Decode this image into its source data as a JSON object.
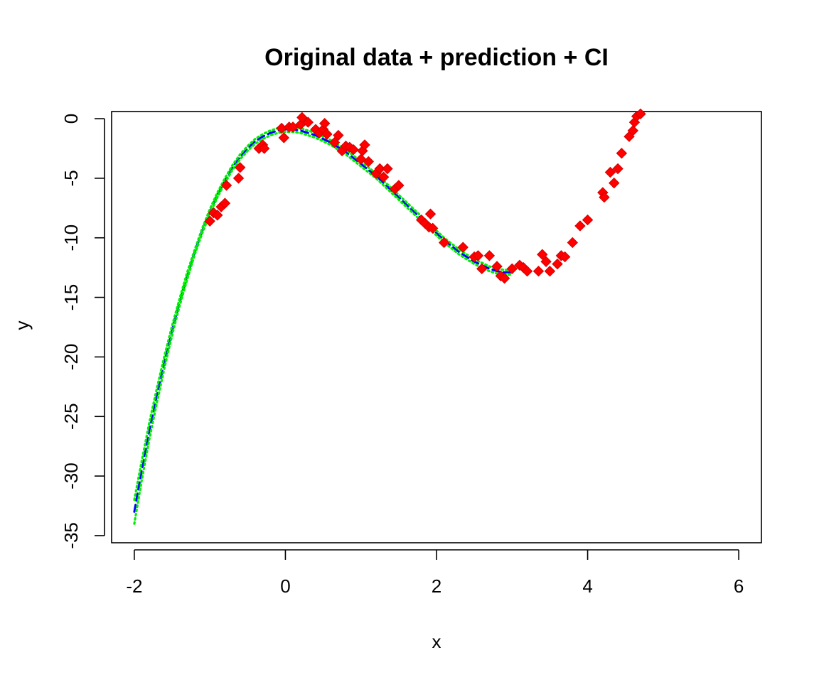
{
  "chart_data": {
    "type": "scatter",
    "title": "Original data + prediction + CI",
    "xlabel": "x",
    "ylabel": "y",
    "xlim": [
      -2.3,
      6.3
    ],
    "ylim": [
      -35.6,
      0.6
    ],
    "x_ticks": [
      -2,
      0,
      2,
      4,
      6
    ],
    "y_ticks": [
      0,
      -5,
      -10,
      -15,
      -20,
      -25,
      -30,
      -35
    ],
    "grid": false,
    "legend": "none",
    "colors": {
      "points": "#ff0000",
      "prediction": "#0000ff",
      "ci": "#00ee00",
      "axes": "#000000"
    },
    "series": [
      {
        "style": "points",
        "marker": "diamond",
        "x": [
          -1.0,
          -0.95,
          -0.9,
          -0.85,
          -0.8,
          -0.78,
          -0.62,
          -0.6,
          -0.35,
          -0.3,
          -0.28,
          -0.05,
          -0.02,
          0.05,
          0.1,
          0.2,
          0.22,
          0.3,
          0.4,
          0.45,
          0.5,
          0.52,
          0.55,
          0.65,
          0.7,
          0.75,
          0.8,
          0.85,
          0.9,
          1.0,
          1.02,
          1.05,
          1.1,
          1.2,
          1.25,
          1.3,
          1.35,
          1.45,
          1.5,
          1.8,
          1.85,
          1.9,
          1.92,
          1.95,
          2.1,
          2.35,
          2.5,
          2.55,
          2.6,
          2.7,
          2.8,
          2.85,
          2.9,
          3.0,
          3.1,
          3.15,
          3.2,
          3.35,
          3.4,
          3.45,
          3.5,
          3.6,
          3.65,
          3.7,
          3.8,
          3.9,
          4.0,
          4.2,
          4.22,
          4.3,
          4.35,
          4.4,
          4.45,
          4.55,
          4.6,
          4.62,
          4.65,
          4.7
        ],
        "y": [
          -8.6,
          -7.9,
          -8.1,
          -7.4,
          -7.1,
          -5.6,
          -5.0,
          -4.1,
          -2.5,
          -2.2,
          -2.5,
          -0.8,
          -1.6,
          -0.7,
          -0.7,
          -0.5,
          0.1,
          -0.3,
          -0.9,
          -1.2,
          -0.9,
          -0.4,
          -1.3,
          -2.0,
          -1.4,
          -2.7,
          -2.3,
          -2.4,
          -2.6,
          -3.4,
          -2.7,
          -2.2,
          -3.6,
          -4.6,
          -4.2,
          -4.9,
          -4.2,
          -5.9,
          -5.6,
          -8.5,
          -8.8,
          -9.1,
          -8.0,
          -9.2,
          -10.4,
          -10.8,
          -11.6,
          -11.5,
          -12.6,
          -11.5,
          -12.4,
          -13.2,
          -13.4,
          -12.6,
          -12.3,
          -12.5,
          -12.8,
          -12.8,
          -11.4,
          -12.0,
          -12.8,
          -12.2,
          -11.5,
          -11.6,
          -10.4,
          -9.0,
          -8.5,
          -6.2,
          -6.6,
          -4.5,
          -5.4,
          -4.2,
          -2.9,
          -1.5,
          -1.0,
          -0.3,
          0.2,
          0.4
        ]
      },
      {
        "style": "dashed-line",
        "x": [
          -2.0,
          -1.9,
          -1.8,
          -1.7,
          -1.6,
          -1.5,
          -1.4,
          -1.3,
          -1.2,
          -1.1,
          -1.0,
          -0.9,
          -0.8,
          -0.7,
          -0.6,
          -0.5,
          -0.4,
          -0.3,
          -0.2,
          -0.1,
          0.0,
          0.1,
          0.2,
          0.3,
          0.4,
          0.5,
          0.6,
          0.7,
          0.8,
          0.9,
          1.0,
          1.1,
          1.2,
          1.3,
          1.4,
          1.5,
          1.6,
          1.7,
          1.8,
          1.9,
          2.0,
          2.1,
          2.2,
          2.3,
          2.4,
          2.5,
          2.6,
          2.7,
          2.8,
          2.9,
          3.0
        ],
        "y": [
          -33.0,
          -29.5,
          -26.2,
          -23.2,
          -20.4,
          -17.8,
          -15.4,
          -13.2,
          -11.2,
          -9.4,
          -7.8,
          -6.4,
          -5.2,
          -4.1,
          -3.2,
          -2.5,
          -1.9,
          -1.5,
          -1.2,
          -1.0,
          -0.9,
          -0.9,
          -1.0,
          -1.2,
          -1.4,
          -1.7,
          -2.0,
          -2.4,
          -2.8,
          -3.3,
          -3.8,
          -4.3,
          -4.8,
          -5.4,
          -6.0,
          -6.6,
          -7.2,
          -7.8,
          -8.4,
          -9.0,
          -9.6,
          -10.2,
          -10.7,
          -11.2,
          -11.6,
          -12.0,
          -12.3,
          -12.6,
          -12.8,
          -12.9,
          -12.9
        ]
      },
      {
        "style": "dotted-line",
        "x": [
          -2.0,
          -1.9,
          -1.8,
          -1.7,
          -1.6,
          -1.5,
          -1.4,
          -1.3,
          -1.2,
          -1.1,
          -1.0,
          -0.9,
          -0.8,
          -0.7,
          -0.6,
          -0.5,
          -0.4,
          -0.3,
          -0.2,
          -0.1,
          0.0,
          0.1,
          0.2,
          0.3,
          0.4,
          0.5,
          0.6,
          0.7,
          0.8,
          0.9,
          1.0,
          1.1,
          1.2,
          1.3,
          1.4,
          1.5,
          1.6,
          1.7,
          1.8,
          1.9,
          2.0,
          2.1,
          2.2,
          2.3,
          2.4,
          2.5,
          2.6,
          2.7,
          2.8,
          2.9,
          3.0
        ],
        "y": [
          -34.0,
          -30.3,
          -26.9,
          -23.8,
          -20.9,
          -18.2,
          -15.7,
          -13.5,
          -11.4,
          -9.6,
          -8.0,
          -6.6,
          -5.4,
          -4.3,
          -3.4,
          -2.7,
          -2.1,
          -1.7,
          -1.4,
          -1.2,
          -1.1,
          -1.1,
          -1.2,
          -1.4,
          -1.6,
          -1.9,
          -2.2,
          -2.6,
          -3.0,
          -3.5,
          -4.0,
          -4.5,
          -5.0,
          -5.6,
          -6.2,
          -6.8,
          -7.4,
          -8.0,
          -8.6,
          -9.2,
          -9.8,
          -10.4,
          -10.9,
          -11.4,
          -11.8,
          -12.2,
          -12.5,
          -12.8,
          -13.0,
          -13.1,
          -13.1
        ]
      },
      {
        "style": "dotted-line",
        "x": [
          -2.0,
          -1.9,
          -1.8,
          -1.7,
          -1.6,
          -1.5,
          -1.4,
          -1.3,
          -1.2,
          -1.1,
          -1.0,
          -0.9,
          -0.8,
          -0.7,
          -0.6,
          -0.5,
          -0.4,
          -0.3,
          -0.2,
          -0.1,
          0.0,
          0.1,
          0.2,
          0.3,
          0.4,
          0.5,
          0.6,
          0.7,
          0.8,
          0.9,
          1.0,
          1.1,
          1.2,
          1.3,
          1.4,
          1.5,
          1.6,
          1.7,
          1.8,
          1.9,
          2.0,
          2.1,
          2.2,
          2.3,
          2.4,
          2.5,
          2.6,
          2.7,
          2.8,
          2.9,
          3.0
        ],
        "y": [
          -32.0,
          -28.7,
          -25.5,
          -22.6,
          -19.9,
          -17.4,
          -15.1,
          -12.9,
          -11.0,
          -9.2,
          -7.6,
          -6.2,
          -5.0,
          -3.9,
          -3.0,
          -2.3,
          -1.7,
          -1.3,
          -1.0,
          -0.8,
          -0.7,
          -0.7,
          -0.8,
          -1.0,
          -1.2,
          -1.5,
          -1.8,
          -2.2,
          -2.6,
          -3.1,
          -3.6,
          -4.1,
          -4.6,
          -5.2,
          -5.8,
          -6.4,
          -7.0,
          -7.6,
          -8.2,
          -8.8,
          -9.4,
          -10.0,
          -10.5,
          -11.0,
          -11.4,
          -11.8,
          -12.1,
          -12.4,
          -12.6,
          -12.7,
          -12.7
        ]
      }
    ]
  }
}
